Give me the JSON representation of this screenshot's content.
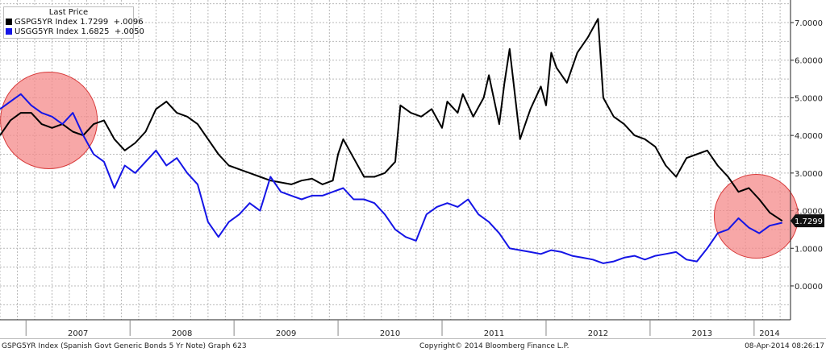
{
  "colors": {
    "spain": "#000000",
    "us": "#1515e6",
    "highlight_fill": "#f48a8a",
    "highlight_stroke": "#d83a3a",
    "grid": "#b9b9b9",
    "last_value_tag": "#111111"
  },
  "legend": {
    "header": "Last Price",
    "items": [
      {
        "label": "GSPG5YR Index",
        "value": "1.7299",
        "change": "+.0096",
        "color": "#000000"
      },
      {
        "label": "USGG5YR Index",
        "value": "1.6825",
        "change": "+.0050",
        "color": "#1515e6"
      }
    ]
  },
  "last_value_tag": "1.7299",
  "footer": {
    "left": "GSPG5YR Index (Spanish Govt Generic Bonds 5 Yr Note) Graph 623",
    "center": "Copyright© 2014 Bloomberg Finance L.P.",
    "right": "08-Apr-2014 08:26:17"
  },
  "chart_data": {
    "type": "line",
    "x_tick_labels": [
      "2007",
      "2008",
      "2009",
      "2010",
      "2011",
      "2012",
      "2013",
      "2014"
    ],
    "y_tick_labels": [
      "0.0000",
      "1.0000",
      "2.0000",
      "3.0000",
      "4.0000",
      "5.0000",
      "6.0000",
      "7.0000"
    ],
    "ylim": [
      -0.9,
      7.6
    ],
    "xlim": [
      2006.75,
      2014.35
    ],
    "grid": true,
    "legend_position": "top-left",
    "series": [
      {
        "name": "GSPG5YR Index",
        "color": "#000000",
        "x": [
          2006.75,
          2006.85,
          2006.95,
          2007.05,
          2007.15,
          2007.25,
          2007.35,
          2007.45,
          2007.55,
          2007.65,
          2007.75,
          2007.85,
          2007.95,
          2008.05,
          2008.15,
          2008.25,
          2008.35,
          2008.45,
          2008.55,
          2008.65,
          2008.75,
          2008.85,
          2008.95,
          2009.05,
          2009.15,
          2009.25,
          2009.35,
          2009.45,
          2009.55,
          2009.65,
          2009.75,
          2009.85,
          2009.95,
          2010.0,
          2010.05,
          2010.15,
          2010.25,
          2010.35,
          2010.45,
          2010.55,
          2010.6,
          2010.7,
          2010.8,
          2010.9,
          2011.0,
          2011.05,
          2011.15,
          2011.2,
          2011.3,
          2011.4,
          2011.45,
          2011.55,
          2011.6,
          2011.65,
          2011.75,
          2011.85,
          2011.95,
          2012.0,
          2012.05,
          2012.1,
          2012.2,
          2012.3,
          2012.4,
          2012.5,
          2012.55,
          2012.65,
          2012.75,
          2012.85,
          2012.95,
          2013.05,
          2013.15,
          2013.25,
          2013.35,
          2013.45,
          2013.55,
          2013.65,
          2013.75,
          2013.85,
          2013.95,
          2014.05,
          2014.15,
          2014.27
        ],
        "y": [
          4.0,
          4.4,
          4.6,
          4.6,
          4.3,
          4.2,
          4.3,
          4.1,
          4.0,
          4.3,
          4.4,
          3.9,
          3.6,
          3.8,
          4.1,
          4.7,
          4.9,
          4.6,
          4.5,
          4.3,
          3.9,
          3.5,
          3.2,
          3.1,
          3.0,
          2.9,
          2.8,
          2.75,
          2.7,
          2.8,
          2.85,
          2.7,
          2.8,
          3.5,
          3.9,
          3.4,
          2.9,
          2.9,
          3.0,
          3.3,
          4.8,
          4.6,
          4.5,
          4.7,
          4.2,
          4.9,
          4.6,
          5.1,
          4.5,
          5.0,
          5.6,
          4.3,
          5.4,
          6.3,
          3.9,
          4.7,
          5.3,
          4.8,
          6.2,
          5.8,
          5.4,
          6.2,
          6.6,
          7.1,
          5.0,
          4.5,
          4.3,
          4.0,
          3.9,
          3.7,
          3.2,
          2.9,
          3.4,
          3.5,
          3.6,
          3.2,
          2.9,
          2.5,
          2.6,
          2.3,
          1.95,
          1.73
        ]
      },
      {
        "name": "USGG5YR Index",
        "color": "#1515e6",
        "x": [
          2006.75,
          2006.85,
          2006.95,
          2007.05,
          2007.15,
          2007.25,
          2007.35,
          2007.45,
          2007.55,
          2007.65,
          2007.75,
          2007.85,
          2007.95,
          2008.05,
          2008.15,
          2008.25,
          2008.35,
          2008.45,
          2008.55,
          2008.65,
          2008.75,
          2008.85,
          2008.95,
          2009.05,
          2009.15,
          2009.25,
          2009.35,
          2009.45,
          2009.55,
          2009.65,
          2009.75,
          2009.85,
          2009.95,
          2010.05,
          2010.15,
          2010.25,
          2010.35,
          2010.45,
          2010.55,
          2010.65,
          2010.75,
          2010.85,
          2010.95,
          2011.05,
          2011.15,
          2011.25,
          2011.35,
          2011.45,
          2011.55,
          2011.65,
          2011.75,
          2011.85,
          2011.95,
          2012.05,
          2012.15,
          2012.25,
          2012.35,
          2012.45,
          2012.55,
          2012.65,
          2012.75,
          2012.85,
          2012.95,
          2013.05,
          2013.15,
          2013.25,
          2013.35,
          2013.45,
          2013.55,
          2013.65,
          2013.75,
          2013.85,
          2013.95,
          2014.05,
          2014.15,
          2014.27
        ],
        "y": [
          4.7,
          4.9,
          5.1,
          4.8,
          4.6,
          4.5,
          4.3,
          4.6,
          4.0,
          3.5,
          3.3,
          2.6,
          3.2,
          3.0,
          3.3,
          3.6,
          3.2,
          3.4,
          3.0,
          2.7,
          1.7,
          1.3,
          1.7,
          1.9,
          2.2,
          2.0,
          2.9,
          2.5,
          2.4,
          2.3,
          2.4,
          2.4,
          2.5,
          2.6,
          2.3,
          2.3,
          2.2,
          1.9,
          1.5,
          1.3,
          1.2,
          1.9,
          2.1,
          2.2,
          2.1,
          2.3,
          1.9,
          1.7,
          1.4,
          1.0,
          0.95,
          0.9,
          0.85,
          0.95,
          0.9,
          0.8,
          0.75,
          0.7,
          0.6,
          0.65,
          0.75,
          0.8,
          0.7,
          0.8,
          0.85,
          0.9,
          0.7,
          0.65,
          1.0,
          1.4,
          1.5,
          1.8,
          1.55,
          1.4,
          1.6,
          1.68
        ]
      }
    ]
  }
}
